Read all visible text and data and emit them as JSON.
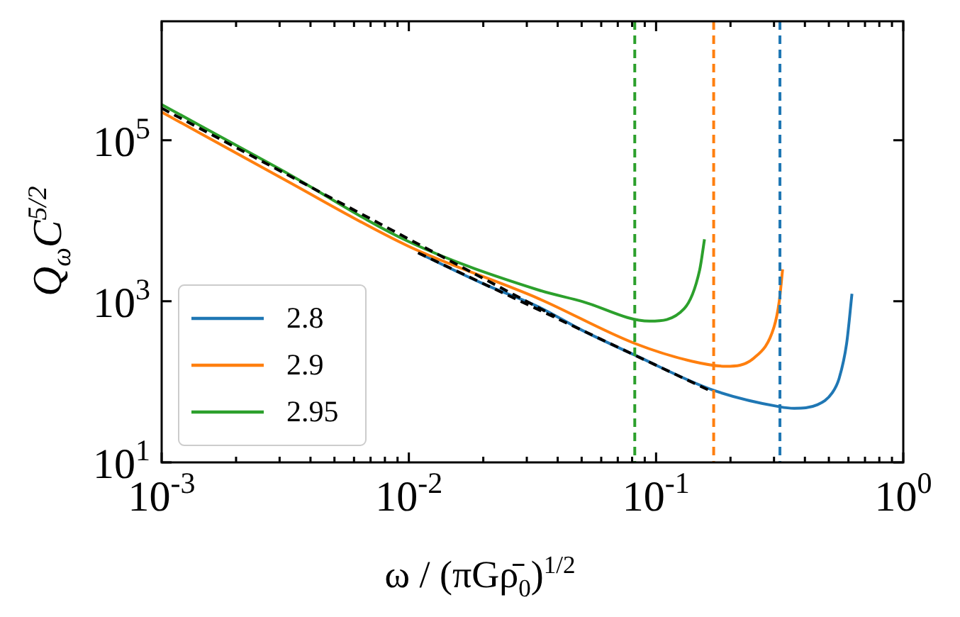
{
  "chart_data": {
    "type": "line",
    "xlabel": "ω / (πGρ̄$_{0}$)$^{1/2}$",
    "ylabel": "Q$_{ω}$C$^{5/2}$",
    "log": "xy",
    "marker": "none",
    "legend": "bottom left",
    "xlim": [
      0.001,
      1
    ],
    "ylim": [
      10,
      3000000
    ],
    "xticks": [
      {
        "value": 0.001,
        "label": "10$^{-3}$"
      },
      {
        "value": 0.002,
        "label": null
      },
      {
        "value": 0.003,
        "label": null
      },
      {
        "value": 0.004,
        "label": null
      },
      {
        "value": 0.005,
        "label": null
      },
      {
        "value": 0.006,
        "label": null
      },
      {
        "value": 0.007,
        "label": null
      },
      {
        "value": 0.008,
        "label": null
      },
      {
        "value": 0.009,
        "label": null
      },
      {
        "value": 0.01,
        "label": "10$^{-2}$"
      },
      {
        "value": 0.02,
        "label": null
      },
      {
        "value": 0.03,
        "label": null
      },
      {
        "value": 0.04,
        "label": null
      },
      {
        "value": 0.05,
        "label": null
      },
      {
        "value": 0.06,
        "label": null
      },
      {
        "value": 0.07,
        "label": null
      },
      {
        "value": 0.08,
        "label": null
      },
      {
        "value": 0.09,
        "label": null
      },
      {
        "value": 0.1,
        "label": "10$^{-1}$"
      },
      {
        "value": 0.2,
        "label": null
      },
      {
        "value": 0.3,
        "label": null
      },
      {
        "value": 0.4,
        "label": null
      },
      {
        "value": 0.5,
        "label": null
      },
      {
        "value": 0.6,
        "label": null
      },
      {
        "value": 0.7,
        "label": null
      },
      {
        "value": 0.8,
        "label": null
      },
      {
        "value": 0.9,
        "label": null
      },
      {
        "value": 1,
        "label": "10$^{0}$"
      }
    ],
    "yticks": [
      {
        "value": 10,
        "label": "10$^{1}$"
      },
      {
        "value": 1000,
        "label": "10$^{3}$"
      },
      {
        "value": 100000,
        "label": "10$^{5}$"
      }
    ],
    "series": [
      {
        "name": "2.8",
        "color": "#1f77b4",
        "x": [
          0.0109,
          0.02,
          0.0335,
          0.05,
          0.082,
          0.171,
          0.317,
          0.362,
          0.45,
          0.516,
          0.55,
          0.59,
          0.62
        ],
        "values": [
          4000,
          1650,
          850,
          440,
          215,
          78.5,
          49,
          47,
          52,
          73,
          110,
          300,
          1240
        ]
      },
      {
        "name": "2.9",
        "color": "#ff7f0e",
        "x": [
          0.001,
          0.003,
          0.01,
          0.0335,
          0.082,
          0.14,
          0.191,
          0.25,
          0.3,
          0.315,
          0.325
        ],
        "values": [
          224000,
          35000,
          4800,
          1080,
          300,
          180,
          156,
          200,
          480,
          1000,
          2500
        ]
      },
      {
        "name": "2.95",
        "color": "#2ca02c",
        "x": [
          0.001,
          0.003,
          0.01,
          0.0335,
          0.05,
          0.094,
          0.13,
          0.15,
          0.157
        ],
        "values": [
          277000,
          44000,
          5500,
          1380,
          1000,
          568,
          813,
          2430,
          5900
        ]
      },
      {
        "color": "#000000",
        "line_style": "dashed",
        "x": [
          0.001,
          0.039
        ],
        "values": [
          250000,
          650
        ]
      },
      {
        "color": "#000000",
        "line_style": "dashed",
        "x": [
          0.0109,
          0.164
        ],
        "values": [
          4000,
          78.5
        ]
      }
    ],
    "ref_lines": [
      {
        "axis": "x",
        "value": 0.082,
        "color": "#2ca02c",
        "line_style": "dashed"
      },
      {
        "axis": "x",
        "value": 0.171,
        "color": "#ff7f0e",
        "line_style": "dashed"
      },
      {
        "axis": "x",
        "value": 0.317,
        "color": "#1f77b4",
        "line_style": "dashed"
      }
    ]
  }
}
